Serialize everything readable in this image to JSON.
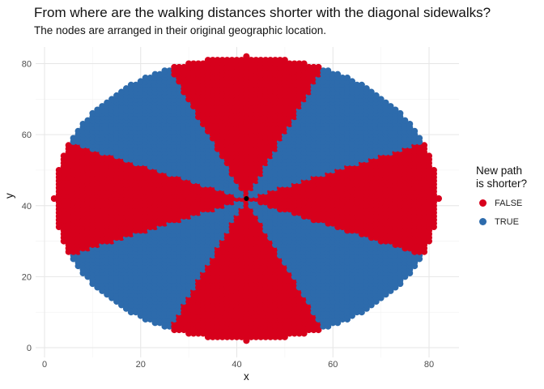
{
  "chart_data": {
    "type": "scatter",
    "title": "From where are the walking distances shorter with the diagonal sidewalks?",
    "subtitle": "The nodes are arranged in their original geographic location.",
    "xlabel": "x",
    "ylabel": "y",
    "xlim": [
      0,
      83
    ],
    "ylim": [
      0,
      83
    ],
    "xticks": [
      0,
      20,
      40,
      60,
      80
    ],
    "yticks": [
      0,
      20,
      40,
      60,
      80
    ],
    "grid": true,
    "legend": {
      "title_line1": "New path",
      "title_line2": "is shorter?",
      "placement": "right",
      "entries": [
        {
          "label": "FALSE",
          "color": "#D7001C"
        },
        {
          "label": "TRUE",
          "color": "#2D6BAC"
        }
      ]
    },
    "grid_nodes": {
      "center": [
        42,
        42
      ],
      "radius": 40,
      "extra_nodes": [
        [
          2,
          42
        ],
        [
          82,
          42
        ],
        [
          42,
          82
        ],
        [
          42,
          2
        ]
      ],
      "rule": "TRUE in diagonal wedges (|dx|, |dy| ratio between ~0.43 and ~2.3); FALSE near the vertical and horizontal axes",
      "step": 1
    },
    "highlight_node": {
      "x": 42,
      "y": 42,
      "color": "#000000"
    }
  }
}
